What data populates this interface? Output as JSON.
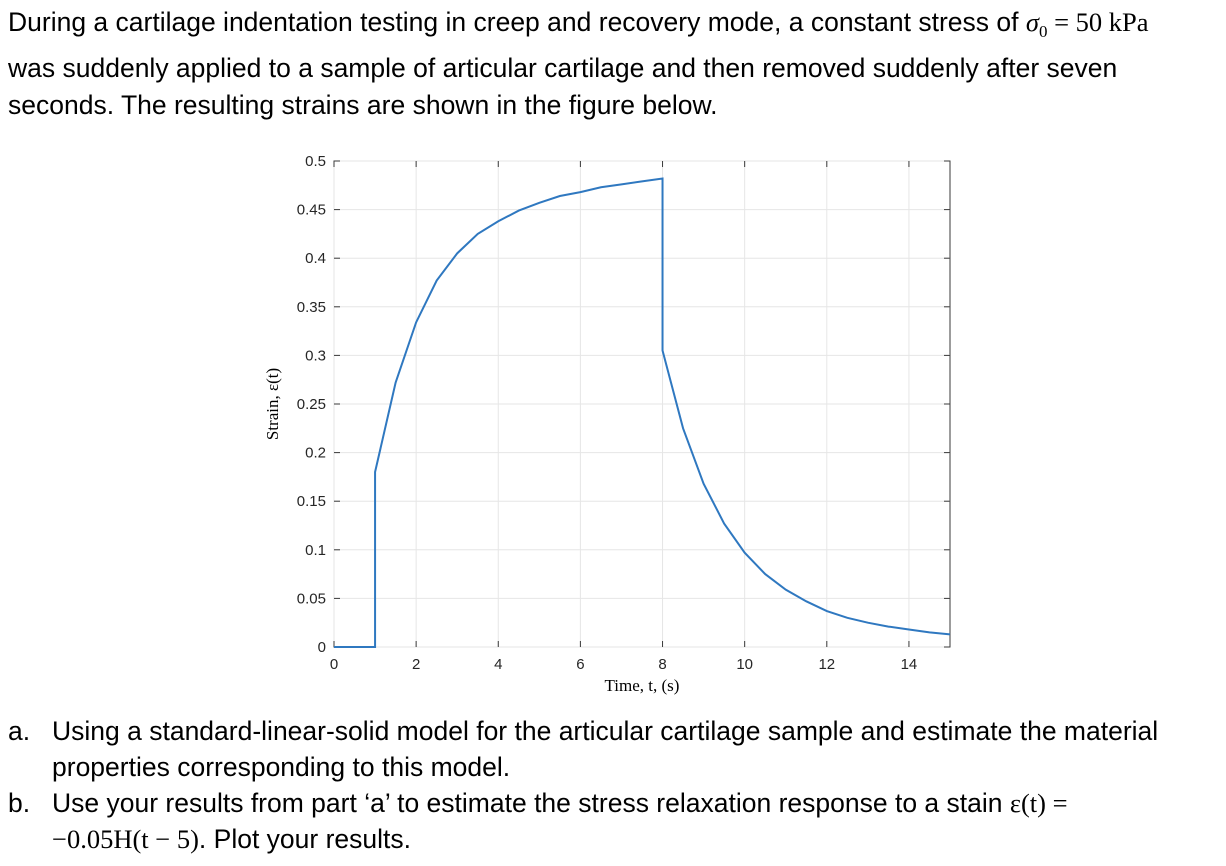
{
  "intro": {
    "line1": "During a cartilage indentation testing in creep and recovery mode, a constant stress of ",
    "sigma": "σ",
    "sigma_sub": "0",
    "eq_value": " = 50 kPa",
    "line2": "was suddenly applied to a sample of articular cartilage and then removed suddenly after seven",
    "line3": "seconds. The resulting strains are shown in the figure below."
  },
  "chart_data": {
    "type": "line",
    "title": "",
    "xlabel": "Time, t, (s)",
    "ylabel": "Strain, ε(t)",
    "xlim": [
      0,
      15
    ],
    "ylim": [
      0,
      0.5
    ],
    "grid": true,
    "line_color": "#2f78c0",
    "xticks": [
      "0",
      "2",
      "4",
      "6",
      "8",
      "10",
      "12",
      "14"
    ],
    "yticks": [
      "0",
      "0.05",
      "0.1",
      "0.15",
      "0.2",
      "0.25",
      "0.3",
      "0.35",
      "0.4",
      "0.45",
      "0.5"
    ],
    "series": [
      {
        "x": [
          0,
          1,
          1,
          1.5,
          2,
          2.5,
          3,
          3.5,
          4,
          4.5,
          5,
          5.5,
          6,
          6.5,
          7,
          7.5,
          8,
          8,
          8.5,
          9,
          9.5,
          10,
          10.5,
          11,
          11.5,
          12,
          12.5,
          13,
          13.5,
          14,
          14.5,
          15
        ],
        "y": [
          0,
          0,
          0.18,
          0.272,
          0.334,
          0.377,
          0.405,
          0.425,
          0.438,
          0.449,
          0.457,
          0.464,
          0.468,
          0.473,
          0.476,
          0.479,
          0.482,
          0.305,
          0.225,
          0.168,
          0.127,
          0.097,
          0.075,
          0.059,
          0.047,
          0.037,
          0.03,
          0.025,
          0.021,
          0.018,
          0.015,
          0.013
        ]
      }
    ]
  },
  "questions": [
    {
      "marker": "a.",
      "line1": "Using a standard-linear-solid model for the articular cartilage sample and estimate the material",
      "line2": "properties corresponding to this model."
    },
    {
      "marker": "b.",
      "line1a": "Use your results from part ‘a’ to estimate the stress relaxation response to a stain ",
      "line1_math": "ε(t) =",
      "line2_math": "−0.05H(t − 5)",
      "line2_tail": ". Plot your results."
    }
  ]
}
